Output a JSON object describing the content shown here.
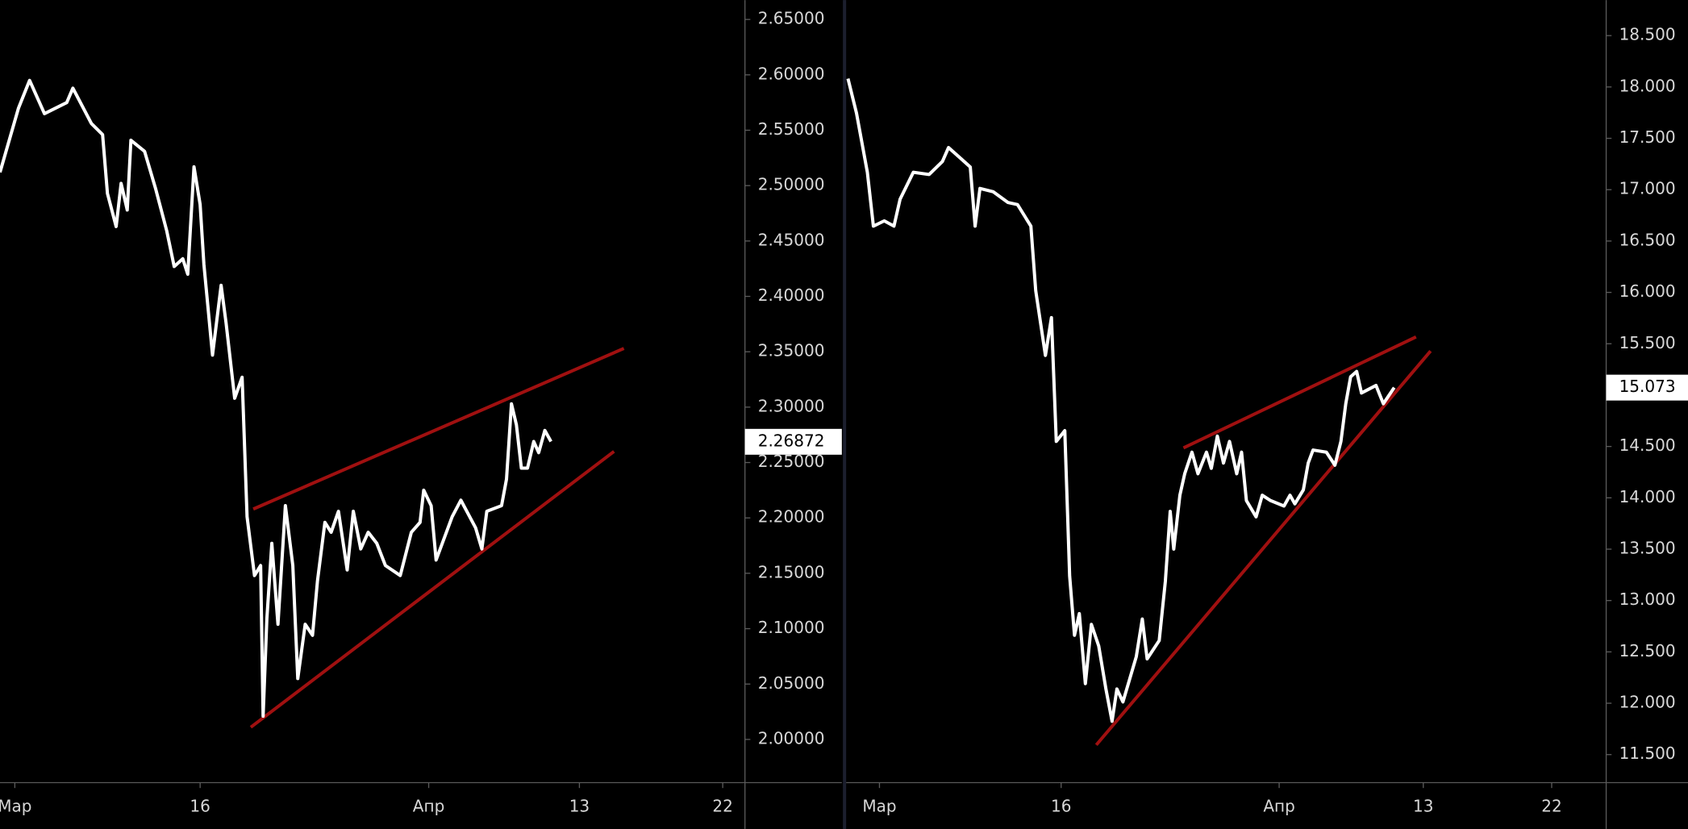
{
  "chart_data": [
    {
      "type": "line",
      "x": [
        -0.2,
        1.3,
        2.2,
        3.4,
        5.2,
        5.7,
        7.2,
        8.1,
        8.5,
        9.2,
        9.6,
        10.1,
        10.4,
        11.5,
        12.4,
        13.3,
        13.9,
        14.6,
        15.0,
        15.5,
        16.0,
        16.3,
        17.0,
        17.7,
        18.1,
        18.8,
        19.4,
        19.8,
        20.4,
        20.9,
        21.1,
        21.4,
        21.8,
        22.3,
        22.9,
        23.5,
        23.9,
        24.5,
        25.1,
        25.5,
        26.1,
        26.6,
        27.2,
        27.9,
        28.4,
        29.0,
        29.6,
        30.3,
        31.0,
        32.2,
        33.1,
        33.8,
        34.1,
        34.7,
        35.1,
        36.4,
        37.1,
        38.3,
        38.8,
        39.2,
        40.4,
        40.8,
        41.2,
        41.6,
        42.0,
        42.5,
        43.0,
        43.4,
        43.9,
        44.4
      ],
      "series": [
        {
          "color": "#ffffff",
          "values": [
            2.512,
            2.57,
            2.595,
            2.565,
            2.575,
            2.588,
            2.556,
            2.546,
            2.493,
            2.463,
            2.502,
            2.478,
            2.541,
            2.531,
            2.497,
            2.459,
            2.427,
            2.434,
            2.42,
            2.517,
            2.483,
            2.429,
            2.347,
            2.41,
            2.376,
            2.308,
            2.327,
            2.201,
            2.148,
            2.157,
            2.021,
            2.109,
            2.177,
            2.104,
            2.211,
            2.157,
            2.055,
            2.104,
            2.094,
            2.143,
            2.196,
            2.187,
            2.206,
            2.153,
            2.206,
            2.172,
            2.187,
            2.177,
            2.157,
            2.148,
            2.187,
            2.196,
            2.225,
            2.211,
            2.162,
            2.201,
            2.216,
            2.191,
            2.172,
            2.206,
            2.211,
            2.235,
            2.303,
            2.284,
            2.245,
            2.245,
            2.269,
            2.259,
            2.279,
            2.269
          ]
        }
      ],
      "trendlines": [
        {
          "color": "#a01010",
          "x": [
            20.3,
            50.3
          ],
          "values": [
            2.208,
            2.353
          ]
        },
        {
          "color": "#a01010",
          "x": [
            20.1,
            49.5
          ],
          "values": [
            2.011,
            2.26
          ]
        }
      ],
      "last_value": {
        "value": 2.26872,
        "label": "2.26872"
      },
      "xlim": [
        -0.2,
        60.1
      ],
      "xticks": [
        {
          "value": 1,
          "label": "Мар"
        },
        {
          "value": 16,
          "label": "16"
        },
        {
          "value": 34.5,
          "label": "Апр"
        },
        {
          "value": 46.7,
          "label": "13"
        },
        {
          "value": 58.3,
          "label": "22"
        }
      ],
      "ylim": [
        1.961,
        2.6675
      ],
      "yticks": [
        {
          "value": 2.0,
          "label": "2.00000"
        },
        {
          "value": 2.05,
          "label": "2.05000"
        },
        {
          "value": 2.1,
          "label": "2.10000"
        },
        {
          "value": 2.15,
          "label": "2.15000"
        },
        {
          "value": 2.2,
          "label": "2.20000"
        },
        {
          "value": 2.25,
          "label": "2.25000"
        },
        {
          "value": 2.3,
          "label": "2.30000"
        },
        {
          "value": 2.35,
          "label": "2.35000"
        },
        {
          "value": 2.4,
          "label": "2.40000"
        },
        {
          "value": 2.45,
          "label": "2.45000"
        },
        {
          "value": 2.5,
          "label": "2.50000"
        },
        {
          "value": 2.55,
          "label": "2.55000"
        },
        {
          "value": 2.6,
          "label": "2.60000"
        },
        {
          "value": 2.65,
          "label": "2.65000"
        }
      ]
    },
    {
      "type": "line",
      "x": [
        -1.6,
        -0.9,
        0.0,
        0.5,
        1.4,
        2.2,
        2.7,
        3.8,
        5.1,
        6.2,
        6.7,
        7.8,
        8.5,
        8.9,
        9.3,
        10.4,
        11.6,
        12.4,
        13.5,
        13.9,
        14.7,
        15.2,
        15.6,
        16.3,
        16.7,
        17.1,
        17.5,
        18.0,
        18.5,
        19.1,
        19.7,
        20.2,
        20.6,
        21.1,
        22.2,
        22.7,
        23.1,
        24.1,
        24.6,
        25.0,
        25.3,
        25.8,
        26.2,
        26.8,
        27.3,
        28.0,
        28.4,
        28.9,
        29.4,
        29.9,
        30.5,
        30.9,
        31.3,
        32.1,
        32.6,
        33.3,
        34.4,
        34.9,
        35.3,
        36.0,
        36.4,
        36.8,
        37.9,
        38.6,
        39.1,
        39.5,
        39.9,
        40.4,
        40.8,
        42.0,
        42.6,
        43.5
      ],
      "series": [
        {
          "color": "#ffffff",
          "values": [
            18.081,
            17.746,
            17.169,
            16.645,
            16.697,
            16.645,
            16.907,
            17.169,
            17.148,
            17.274,
            17.41,
            17.295,
            17.221,
            16.645,
            17.012,
            16.98,
            16.876,
            16.855,
            16.645,
            16.016,
            15.387,
            15.754,
            14.549,
            14.654,
            13.239,
            12.662,
            12.872,
            12.191,
            12.768,
            12.558,
            12.139,
            11.824,
            12.139,
            12.013,
            12.453,
            12.82,
            12.432,
            12.61,
            13.187,
            13.868,
            13.501,
            14.025,
            14.235,
            14.444,
            14.235,
            14.444,
            14.287,
            14.601,
            14.339,
            14.549,
            14.235,
            14.444,
            13.973,
            13.815,
            14.025,
            13.973,
            13.92,
            14.025,
            13.941,
            14.078,
            14.339,
            14.465,
            14.444,
            14.318,
            14.549,
            14.916,
            15.178,
            15.23,
            15.021,
            15.094,
            14.916,
            15.073
          ]
        }
      ],
      "trendlines": [
        {
          "color": "#a01010",
          "x": [
            26.1,
            45.3
          ],
          "values": [
            14.486,
            15.566
          ]
        },
        {
          "color": "#a01010",
          "x": [
            18.9,
            46.5
          ],
          "values": [
            11.594,
            15.429
          ]
        }
      ],
      "last_value": {
        "value": 15.073,
        "label": "15.073"
      },
      "xlim": [
        -1.75,
        61.0
      ],
      "xticks": [
        {
          "value": 1,
          "label": "Мар"
        },
        {
          "value": 16,
          "label": "16"
        },
        {
          "value": 34,
          "label": "Апр"
        },
        {
          "value": 45.9,
          "label": "13"
        },
        {
          "value": 56.5,
          "label": "22"
        }
      ],
      "ylim": [
        11.227,
        18.846
      ],
      "yticks": [
        {
          "value": 11.5,
          "label": "11.500"
        },
        {
          "value": 12,
          "label": "12.000"
        },
        {
          "value": 12.5,
          "label": "12.500"
        },
        {
          "value": 13,
          "label": "13.000"
        },
        {
          "value": 13.5,
          "label": "13.500"
        },
        {
          "value": 14,
          "label": "14.000"
        },
        {
          "value": 14.5,
          "label": "14.500"
        },
        {
          "value": 15,
          "label": "15.000"
        },
        {
          "value": 15.5,
          "label": "15.500"
        },
        {
          "value": 16,
          "label": "16.000"
        },
        {
          "value": 16.5,
          "label": "16.500"
        },
        {
          "value": 17,
          "label": "17.000"
        },
        {
          "value": 17.5,
          "label": "17.500"
        },
        {
          "value": 18,
          "label": "18.000"
        },
        {
          "value": 18.5,
          "label": "18.500"
        }
      ]
    }
  ]
}
